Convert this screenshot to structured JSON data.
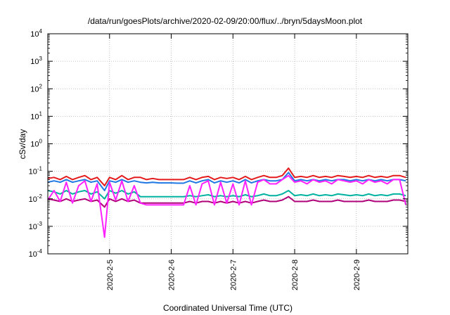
{
  "chart_data": {
    "type": "line",
    "title": "/data/run/goesPlots/archive/2020-02-09/20:00/flux/../bryn/5daysMoon.plot",
    "xlabel": "Coordinated Universal Time (UTC)",
    "ylabel": "cSv/day",
    "y_scale": "log",
    "ylim": [
      0.0001,
      10000
    ],
    "y_ticks": [
      {
        "base": "10",
        "exp": "-4"
      },
      {
        "base": "10",
        "exp": "-3"
      },
      {
        "base": "10",
        "exp": "-2"
      },
      {
        "base": "10",
        "exp": "-1"
      },
      {
        "base": "10",
        "exp": "0"
      },
      {
        "base": "10",
        "exp": "1"
      },
      {
        "base": "10",
        "exp": "2"
      },
      {
        "base": "10",
        "exp": "3"
      },
      {
        "base": "10",
        "exp": "4"
      }
    ],
    "xlim": [
      "2020-02-04 00:00",
      "2020-02-09 20:00"
    ],
    "x_ticks": [
      "2020-2-5",
      "2020-2-6",
      "2020-2-7",
      "2020-2-8",
      "2020-2-9"
    ],
    "grid": true,
    "colors": [
      "#e41a1c",
      "#1f78e4",
      "#00b2a0",
      "#b0007a",
      "#ff20ff"
    ],
    "x_days": [
      0.0,
      0.1,
      0.2,
      0.3,
      0.4,
      0.5,
      0.6,
      0.7,
      0.8,
      0.92,
      1.0,
      1.1,
      1.2,
      1.3,
      1.4,
      1.5,
      1.6,
      1.7,
      1.8,
      1.9,
      2.0,
      2.1,
      2.2,
      2.3,
      2.4,
      2.5,
      2.6,
      2.7,
      2.8,
      2.9,
      3.0,
      3.1,
      3.2,
      3.3,
      3.4,
      3.5,
      3.6,
      3.7,
      3.8,
      3.9,
      4.0,
      4.1,
      4.2,
      4.3,
      4.4,
      4.5,
      4.6,
      4.7,
      4.8,
      4.9,
      5.0,
      5.1,
      5.2,
      5.3,
      5.4,
      5.5,
      5.6,
      5.7,
      5.8
    ],
    "series": [
      {
        "values": [
          0.055,
          0.06,
          0.05,
          0.065,
          0.05,
          0.06,
          0.07,
          0.05,
          0.06,
          0.03,
          0.06,
          0.05,
          0.07,
          0.05,
          0.06,
          0.06,
          0.05,
          0.055,
          0.05,
          0.05,
          0.05,
          0.05,
          0.05,
          0.06,
          0.05,
          0.06,
          0.065,
          0.05,
          0.06,
          0.055,
          0.06,
          0.05,
          0.065,
          0.05,
          0.06,
          0.07,
          0.06,
          0.06,
          0.07,
          0.13,
          0.06,
          0.065,
          0.06,
          0.07,
          0.06,
          0.065,
          0.06,
          0.07,
          0.065,
          0.06,
          0.065,
          0.06,
          0.07,
          0.06,
          0.065,
          0.06,
          0.07,
          0.07,
          0.06
        ]
      },
      {
        "values": [
          0.04,
          0.045,
          0.04,
          0.05,
          0.04,
          0.045,
          0.05,
          0.04,
          0.045,
          0.02,
          0.045,
          0.04,
          0.05,
          0.04,
          0.045,
          0.04,
          0.038,
          0.04,
          0.038,
          0.038,
          0.038,
          0.037,
          0.037,
          0.045,
          0.038,
          0.045,
          0.05,
          0.038,
          0.045,
          0.04,
          0.045,
          0.038,
          0.05,
          0.038,
          0.045,
          0.05,
          0.045,
          0.045,
          0.05,
          0.09,
          0.045,
          0.05,
          0.045,
          0.05,
          0.045,
          0.05,
          0.045,
          0.05,
          0.05,
          0.045,
          0.05,
          0.045,
          0.05,
          0.045,
          0.05,
          0.045,
          0.05,
          0.05,
          0.045
        ]
      },
      {
        "values": [
          0.02,
          0.018,
          0.015,
          0.02,
          0.015,
          0.018,
          0.02,
          0.015,
          0.018,
          0.01,
          0.02,
          0.016,
          0.02,
          0.015,
          0.018,
          0.012,
          0.012,
          0.012,
          0.012,
          0.012,
          0.012,
          0.012,
          0.012,
          0.013,
          0.012,
          0.013,
          0.014,
          0.012,
          0.013,
          0.012,
          0.013,
          0.012,
          0.014,
          0.012,
          0.013,
          0.015,
          0.013,
          0.013,
          0.015,
          0.02,
          0.013,
          0.014,
          0.013,
          0.015,
          0.013,
          0.014,
          0.013,
          0.015,
          0.014,
          0.013,
          0.014,
          0.013,
          0.015,
          0.013,
          0.014,
          0.013,
          0.015,
          0.015,
          0.013
        ]
      },
      {
        "values": [
          0.01,
          0.009,
          0.008,
          0.01,
          0.008,
          0.009,
          0.01,
          0.008,
          0.009,
          0.005,
          0.01,
          0.008,
          0.01,
          0.008,
          0.009,
          0.007,
          0.007,
          0.007,
          0.007,
          0.007,
          0.007,
          0.007,
          0.007,
          0.008,
          0.007,
          0.008,
          0.008,
          0.007,
          0.008,
          0.007,
          0.008,
          0.007,
          0.008,
          0.007,
          0.008,
          0.009,
          0.008,
          0.008,
          0.009,
          0.012,
          0.008,
          0.008,
          0.008,
          0.009,
          0.008,
          0.008,
          0.008,
          0.009,
          0.008,
          0.008,
          0.008,
          0.008,
          0.009,
          0.008,
          0.008,
          0.008,
          0.009,
          0.009,
          0.008
        ]
      },
      {
        "values": [
          0.009,
          0.02,
          0.008,
          0.04,
          0.007,
          0.03,
          0.045,
          0.008,
          0.035,
          0.0004,
          0.04,
          0.009,
          0.045,
          0.008,
          0.03,
          0.007,
          0.006,
          0.006,
          0.006,
          0.006,
          0.006,
          0.006,
          0.006,
          0.03,
          0.006,
          0.035,
          0.045,
          0.006,
          0.04,
          0.007,
          0.035,
          0.006,
          0.045,
          0.006,
          0.04,
          0.05,
          0.035,
          0.035,
          0.05,
          0.07,
          0.04,
          0.045,
          0.035,
          0.05,
          0.04,
          0.045,
          0.035,
          0.05,
          0.045,
          0.04,
          0.045,
          0.035,
          0.05,
          0.04,
          0.045,
          0.035,
          0.05,
          0.05,
          0.006
        ]
      }
    ]
  }
}
